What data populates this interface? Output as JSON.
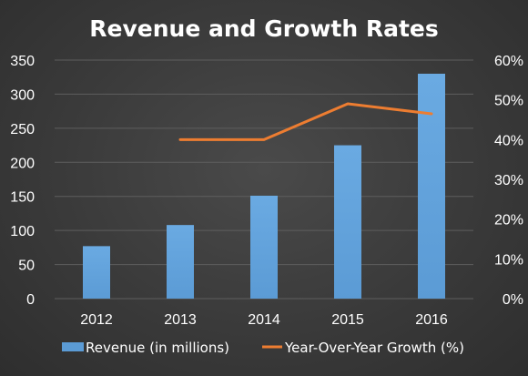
{
  "chart_data": {
    "type": "bar",
    "title": "Revenue and Growth Rates",
    "categories": [
      "2012",
      "2013",
      "2014",
      "2015",
      "2016"
    ],
    "series": [
      {
        "name": "Revenue (in millions)",
        "type": "bar",
        "axis": "left",
        "color": "#5b9bd5",
        "values": [
          77,
          108,
          151,
          225,
          330
        ]
      },
      {
        "name": "Year-Over-Year Growth (%)",
        "type": "line",
        "axis": "right",
        "color": "#ed7d31",
        "values": [
          null,
          40,
          40,
          49,
          46.5
        ]
      }
    ],
    "left_axis": {
      "ylim": [
        0,
        350
      ],
      "ticks": [
        "0",
        "50",
        "100",
        "150",
        "200",
        "250",
        "300",
        "350"
      ]
    },
    "right_axis": {
      "ylim": [
        0,
        60
      ],
      "ticks": [
        "0%",
        "10%",
        "20%",
        "30%",
        "40%",
        "50%",
        "60%"
      ]
    },
    "grid": true,
    "legend_position": "bottom"
  }
}
